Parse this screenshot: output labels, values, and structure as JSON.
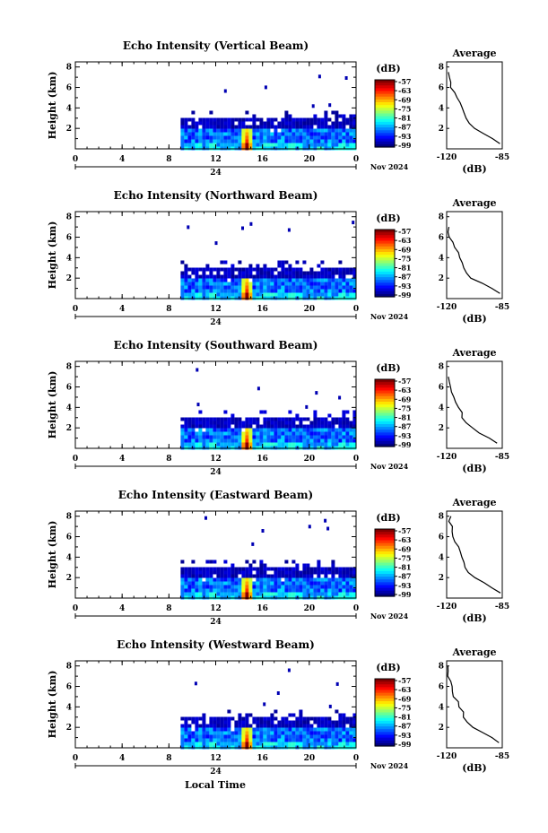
{
  "figure": {
    "date_label": "Nov 2024",
    "day_label": "24",
    "xlabel": "Local Time",
    "ylabel": "Height (km)",
    "cbar_unit": "(dB)",
    "avg_title": "Average",
    "avg_xlabel": "(dB)"
  },
  "chart_data": [
    {
      "type": "heatmap",
      "title": "Echo Intensity (Vertical Beam)",
      "xlabel": "Local Time",
      "ylabel": "Height (km)",
      "x_ticks": [
        "0",
        "4",
        "8",
        "12",
        "16",
        "20",
        "0"
      ],
      "xlim": [
        0,
        24
      ],
      "y_ticks": [
        "2",
        "4",
        "6",
        "8"
      ],
      "ylim": [
        0,
        8.5
      ],
      "colorbar": {
        "label": "(dB)",
        "ticks": [
          "-57",
          "-63",
          "-69",
          "-75",
          "-81",
          "-87",
          "-93",
          "-99"
        ],
        "range": [
          -99,
          -57
        ]
      },
      "coverage": {
        "start_hour": 9,
        "end_hour": 24,
        "top_km": 3.2,
        "strong_layer_km": 1.5,
        "peak_hour": 14.5
      },
      "average_profile": {
        "xlabel": "(dB)",
        "xticks": [
          "-120",
          "-85"
        ],
        "xlim": [
          -120,
          -85
        ],
        "yticks": [
          "2",
          "4",
          "6",
          "8"
        ],
        "heights": [
          0.5,
          1.0,
          1.5,
          2.0,
          2.5,
          3.0,
          3.5,
          4.0,
          4.5,
          5.0,
          5.5,
          6.0,
          6.5,
          7.0,
          7.5
        ],
        "values": [
          -87,
          -91,
          -97,
          -103,
          -106,
          -108,
          -109,
          -111,
          -112,
          -114,
          -115,
          -117,
          -118,
          -118,
          -119
        ]
      }
    },
    {
      "type": "heatmap",
      "title": "Echo Intensity (Northward Beam)",
      "xlabel": "Local Time",
      "ylabel": "Height (km)",
      "x_ticks": [
        "0",
        "4",
        "8",
        "12",
        "16",
        "20",
        "0"
      ],
      "xlim": [
        0,
        24
      ],
      "y_ticks": [
        "2",
        "4",
        "6",
        "8"
      ],
      "ylim": [
        0,
        8.5
      ],
      "colorbar": {
        "label": "(dB)",
        "ticks": [
          "-57",
          "-63",
          "-69",
          "-75",
          "-81",
          "-87",
          "-93",
          "-99"
        ],
        "range": [
          -99,
          -57
        ]
      },
      "coverage": {
        "start_hour": 9,
        "end_hour": 24,
        "top_km": 3.2,
        "strong_layer_km": 1.5,
        "peak_hour": 14.5
      },
      "average_profile": {
        "xlabel": "(dB)",
        "xticks": [
          "-120",
          "-85"
        ],
        "xlim": [
          -120,
          -85
        ],
        "yticks": [
          "2",
          "4",
          "6",
          "8"
        ],
        "heights": [
          0.5,
          1.0,
          1.5,
          2.0,
          2.5,
          3.0,
          3.5,
          4.0,
          4.5,
          5.0,
          5.5,
          6.0,
          6.5,
          7.0
        ],
        "values": [
          -86,
          -92,
          -98,
          -104,
          -107,
          -109,
          -110,
          -112,
          -113,
          -115,
          -116,
          -118,
          -119,
          -119
        ]
      }
    },
    {
      "type": "heatmap",
      "title": "Echo Intensity (Southward Beam)",
      "xlabel": "Local Time",
      "ylabel": "Height (km)",
      "x_ticks": [
        "0",
        "4",
        "8",
        "12",
        "16",
        "20",
        "0"
      ],
      "xlim": [
        0,
        24
      ],
      "y_ticks": [
        "2",
        "4",
        "6",
        "8"
      ],
      "ylim": [
        0,
        8.5
      ],
      "colorbar": {
        "label": "(dB)",
        "ticks": [
          "-57",
          "-63",
          "-69",
          "-75",
          "-81",
          "-87",
          "-93",
          "-99"
        ],
        "range": [
          -99,
          -57
        ]
      },
      "coverage": {
        "start_hour": 9,
        "end_hour": 24,
        "top_km": 3.2,
        "strong_layer_km": 1.5,
        "peak_hour": 14.5
      },
      "average_profile": {
        "xlabel": "(dB)",
        "xticks": [
          "-120",
          "-85"
        ],
        "xlim": [
          -120,
          -85
        ],
        "yticks": [
          "2",
          "4",
          "6",
          "8"
        ],
        "heights": [
          0.5,
          1.0,
          1.5,
          2.0,
          2.5,
          3.0,
          3.5,
          4.0,
          4.5,
          5.0,
          5.5,
          6.0,
          6.5,
          7.0
        ],
        "values": [
          -88,
          -93,
          -99,
          -104,
          -108,
          -110,
          -111,
          -113,
          -114,
          -116,
          -117,
          -118,
          -119,
          -119
        ]
      }
    },
    {
      "type": "heatmap",
      "title": "Echo Intensity (Eastward Beam)",
      "xlabel": "Local Time",
      "ylabel": "Height (km)",
      "x_ticks": [
        "0",
        "4",
        "8",
        "12",
        "16",
        "20",
        "0"
      ],
      "xlim": [
        0,
        24
      ],
      "y_ticks": [
        "2",
        "4",
        "6",
        "8"
      ],
      "ylim": [
        0,
        8.5
      ],
      "colorbar": {
        "label": "(dB)",
        "ticks": [
          "-57",
          "-63",
          "-69",
          "-75",
          "-81",
          "-87",
          "-93",
          "-99"
        ],
        "range": [
          -99,
          -57
        ]
      },
      "coverage": {
        "start_hour": 9,
        "end_hour": 24,
        "top_km": 3.2,
        "strong_layer_km": 1.5,
        "peak_hour": 14.5
      },
      "average_profile": {
        "xlabel": "(dB)",
        "xticks": [
          "-120",
          "-85"
        ],
        "xlim": [
          -120,
          -85
        ],
        "yticks": [
          "2",
          "4",
          "6",
          "8"
        ],
        "heights": [
          0.5,
          1.0,
          1.5,
          2.0,
          2.5,
          3.0,
          3.5,
          4.0,
          4.5,
          5.0,
          5.5,
          6.0,
          6.5,
          7.0,
          7.5,
          8.0
        ],
        "values": [
          -86,
          -91,
          -97,
          -103,
          -106,
          -108,
          -109,
          -111,
          -112,
          -113,
          -115,
          -116,
          -117,
          -117,
          -118,
          -118
        ]
      }
    },
    {
      "type": "heatmap",
      "title": "Echo Intensity (Westward Beam)",
      "xlabel": "Local Time",
      "ylabel": "Height (km)",
      "x_ticks": [
        "0",
        "4",
        "8",
        "12",
        "16",
        "20",
        "0"
      ],
      "xlim": [
        0,
        24
      ],
      "y_ticks": [
        "2",
        "4",
        "6",
        "8"
      ],
      "ylim": [
        0,
        8.5
      ],
      "colorbar": {
        "label": "(dB)",
        "ticks": [
          "-57",
          "-63",
          "-69",
          "-75",
          "-81",
          "-87",
          "-93",
          "-99"
        ],
        "range": [
          -99,
          -57
        ]
      },
      "coverage": {
        "start_hour": 9,
        "end_hour": 24,
        "top_km": 3.2,
        "strong_layer_km": 1.5,
        "peak_hour": 14.5
      },
      "average_profile": {
        "xlabel": "(dB)",
        "xticks": [
          "-120",
          "-85"
        ],
        "xlim": [
          -120,
          -85
        ],
        "yticks": [
          "2",
          "4",
          "6",
          "8"
        ],
        "heights": [
          0.5,
          1.0,
          1.5,
          2.0,
          2.5,
          3.0,
          3.5,
          4.0,
          4.5,
          5.0,
          5.5,
          6.0,
          6.5,
          7.0,
          7.5,
          8.0
        ],
        "values": [
          -87,
          -92,
          -98,
          -104,
          -107,
          -109,
          -110,
          -112,
          -113,
          -115,
          -116,
          -117,
          -118,
          -119,
          -119,
          -119
        ]
      }
    }
  ]
}
